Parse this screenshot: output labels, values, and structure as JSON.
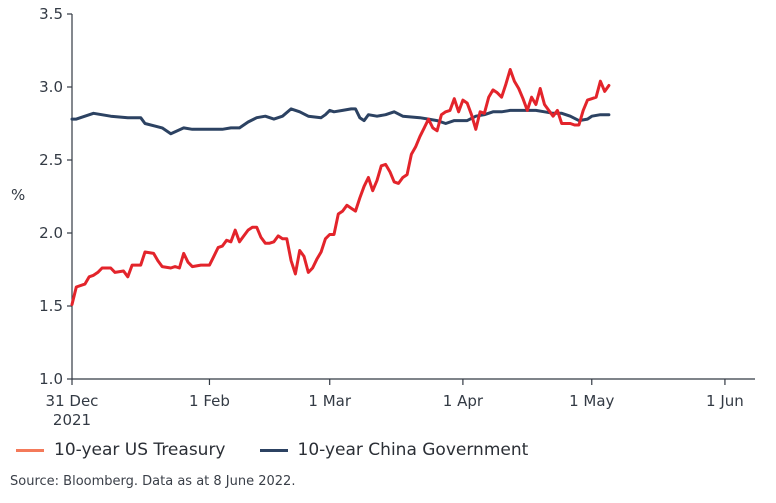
{
  "chart_data": {
    "type": "line",
    "ylabel": "%",
    "ylim": [
      1.0,
      3.5
    ],
    "yticks": [
      "1.0",
      "1.5",
      "2.0",
      "2.5",
      "3.0",
      "3.5"
    ],
    "xticks": [
      {
        "date": "2021-12-31",
        "label": "31 Dec\n2021"
      },
      {
        "date": "2022-02-01",
        "label": "1 Feb"
      },
      {
        "date": "2022-03-01",
        "label": "1 Mar"
      },
      {
        "date": "2022-04-01",
        "label": "1 Apr"
      },
      {
        "date": "2022-05-01",
        "label": "1 May"
      },
      {
        "date": "2022-06-01",
        "label": "1 Jun"
      }
    ],
    "xlim": [
      "2021-12-31",
      "2022-06-08"
    ],
    "grid": false,
    "legend_position": "bottom-left",
    "series": [
      {
        "name": "10-year US Treasury",
        "legend_color": "#f47a5a",
        "line_color": "#e3242b",
        "points": [
          [
            "2021-12-31",
            1.51
          ],
          [
            "2022-01-01",
            1.63
          ],
          [
            "2022-01-03",
            1.65
          ],
          [
            "2022-01-04",
            1.7
          ],
          [
            "2022-01-05",
            1.71
          ],
          [
            "2022-01-06",
            1.73
          ],
          [
            "2022-01-07",
            1.76
          ],
          [
            "2022-01-09",
            1.76
          ],
          [
            "2022-01-10",
            1.73
          ],
          [
            "2022-01-12",
            1.74
          ],
          [
            "2022-01-13",
            1.7
          ],
          [
            "2022-01-14",
            1.78
          ],
          [
            "2022-01-16",
            1.78
          ],
          [
            "2022-01-17",
            1.87
          ],
          [
            "2022-01-19",
            1.86
          ],
          [
            "2022-01-20",
            1.81
          ],
          [
            "2022-01-21",
            1.77
          ],
          [
            "2022-01-23",
            1.76
          ],
          [
            "2022-01-24",
            1.77
          ],
          [
            "2022-01-25",
            1.76
          ],
          [
            "2022-01-26",
            1.86
          ],
          [
            "2022-01-27",
            1.8
          ],
          [
            "2022-01-28",
            1.77
          ],
          [
            "2022-01-30",
            1.78
          ],
          [
            "2022-01-31",
            1.78
          ],
          [
            "2022-02-01",
            1.78
          ],
          [
            "2022-02-02",
            1.84
          ],
          [
            "2022-02-03",
            1.9
          ],
          [
            "2022-02-04",
            1.91
          ],
          [
            "2022-02-05",
            1.95
          ],
          [
            "2022-02-06",
            1.94
          ],
          [
            "2022-02-07",
            2.02
          ],
          [
            "2022-02-08",
            1.94
          ],
          [
            "2022-02-09",
            1.98
          ],
          [
            "2022-02-10",
            2.02
          ],
          [
            "2022-02-11",
            2.04
          ],
          [
            "2022-02-12",
            2.04
          ],
          [
            "2022-02-13",
            1.97
          ],
          [
            "2022-02-14",
            1.93
          ],
          [
            "2022-02-15",
            1.93
          ],
          [
            "2022-02-16",
            1.94
          ],
          [
            "2022-02-17",
            1.98
          ],
          [
            "2022-02-18",
            1.96
          ],
          [
            "2022-02-19",
            1.96
          ],
          [
            "2022-02-20",
            1.81
          ],
          [
            "2022-02-21",
            1.72
          ],
          [
            "2022-02-22",
            1.88
          ],
          [
            "2022-02-23",
            1.84
          ],
          [
            "2022-02-24",
            1.73
          ],
          [
            "2022-02-25",
            1.76
          ],
          [
            "2022-02-26",
            1.82
          ],
          [
            "2022-02-27",
            1.87
          ],
          [
            "2022-02-28",
            1.96
          ],
          [
            "2022-03-01",
            1.99
          ],
          [
            "2022-03-02",
            1.99
          ],
          [
            "2022-03-03",
            2.13
          ],
          [
            "2022-03-04",
            2.15
          ],
          [
            "2022-03-05",
            2.19
          ],
          [
            "2022-03-06",
            2.17
          ],
          [
            "2022-03-07",
            2.15
          ],
          [
            "2022-03-08",
            2.24
          ],
          [
            "2022-03-09",
            2.32
          ],
          [
            "2022-03-10",
            2.38
          ],
          [
            "2022-03-11",
            2.29
          ],
          [
            "2022-03-12",
            2.36
          ],
          [
            "2022-03-13",
            2.46
          ],
          [
            "2022-03-14",
            2.47
          ],
          [
            "2022-03-15",
            2.42
          ],
          [
            "2022-03-16",
            2.35
          ],
          [
            "2022-03-17",
            2.34
          ],
          [
            "2022-03-18",
            2.38
          ],
          [
            "2022-03-19",
            2.4
          ],
          [
            "2022-03-20",
            2.54
          ],
          [
            "2022-03-21",
            2.59
          ],
          [
            "2022-03-22",
            2.66
          ],
          [
            "2022-03-23",
            2.72
          ],
          [
            "2022-03-24",
            2.78
          ],
          [
            "2022-03-25",
            2.72
          ],
          [
            "2022-03-26",
            2.7
          ],
          [
            "2022-03-27",
            2.81
          ],
          [
            "2022-03-28",
            2.83
          ],
          [
            "2022-03-29",
            2.84
          ],
          [
            "2022-03-30",
            2.92
          ],
          [
            "2022-03-31",
            2.83
          ],
          [
            "2022-04-01",
            2.91
          ],
          [
            "2022-04-02",
            2.89
          ],
          [
            "2022-04-03",
            2.81
          ],
          [
            "2022-04-04",
            2.71
          ],
          [
            "2022-04-05",
            2.83
          ],
          [
            "2022-04-06",
            2.82
          ],
          [
            "2022-04-07",
            2.93
          ],
          [
            "2022-04-08",
            2.98
          ],
          [
            "2022-04-09",
            2.96
          ],
          [
            "2022-04-10",
            2.93
          ],
          [
            "2022-04-11",
            3.02
          ],
          [
            "2022-04-12",
            3.12
          ],
          [
            "2022-04-13",
            3.04
          ],
          [
            "2022-04-14",
            2.99
          ],
          [
            "2022-04-15",
            2.92
          ],
          [
            "2022-04-16",
            2.84
          ],
          [
            "2022-04-17",
            2.93
          ],
          [
            "2022-04-18",
            2.88
          ],
          [
            "2022-04-19",
            2.99
          ],
          [
            "2022-04-20",
            2.88
          ],
          [
            "2022-04-21",
            2.84
          ],
          [
            "2022-04-22",
            2.8
          ],
          [
            "2022-04-23",
            2.84
          ],
          [
            "2022-04-24",
            2.75
          ],
          [
            "2022-04-25",
            2.75
          ],
          [
            "2022-04-26",
            2.75
          ],
          [
            "2022-04-27",
            2.74
          ],
          [
            "2022-04-28",
            2.74
          ],
          [
            "2022-04-29",
            2.84
          ],
          [
            "2022-04-30",
            2.91
          ],
          [
            "2022-05-01",
            2.92
          ],
          [
            "2022-05-02",
            2.93
          ],
          [
            "2022-05-03",
            3.04
          ],
          [
            "2022-05-04",
            2.97
          ],
          [
            "2022-05-05",
            3.01
          ]
        ]
      },
      {
        "name": "10-year China Government",
        "legend_color": "#2c4262",
        "line_color": "#2c4262",
        "points": [
          [
            "2021-12-31",
            2.78
          ],
          [
            "2022-01-01",
            2.78
          ],
          [
            "2022-01-03",
            2.8
          ],
          [
            "2022-01-05",
            2.82
          ],
          [
            "2022-01-09",
            2.8
          ],
          [
            "2022-01-13",
            2.79
          ],
          [
            "2022-01-16",
            2.79
          ],
          [
            "2022-01-17",
            2.75
          ],
          [
            "2022-01-21",
            2.72
          ],
          [
            "2022-01-23",
            2.68
          ],
          [
            "2022-01-26",
            2.72
          ],
          [
            "2022-01-28",
            2.71
          ],
          [
            "2022-02-01",
            2.71
          ],
          [
            "2022-02-04",
            2.71
          ],
          [
            "2022-02-06",
            2.72
          ],
          [
            "2022-02-08",
            2.72
          ],
          [
            "2022-02-10",
            2.76
          ],
          [
            "2022-02-12",
            2.79
          ],
          [
            "2022-02-14",
            2.8
          ],
          [
            "2022-02-16",
            2.78
          ],
          [
            "2022-02-18",
            2.8
          ],
          [
            "2022-02-20",
            2.85
          ],
          [
            "2022-02-22",
            2.83
          ],
          [
            "2022-02-24",
            2.8
          ],
          [
            "2022-02-27",
            2.79
          ],
          [
            "2022-02-28",
            2.81
          ],
          [
            "2022-03-01",
            2.84
          ],
          [
            "2022-03-02",
            2.83
          ],
          [
            "2022-03-04",
            2.84
          ],
          [
            "2022-03-06",
            2.85
          ],
          [
            "2022-03-07",
            2.85
          ],
          [
            "2022-03-08",
            2.79
          ],
          [
            "2022-03-09",
            2.77
          ],
          [
            "2022-03-10",
            2.81
          ],
          [
            "2022-03-12",
            2.8
          ],
          [
            "2022-03-14",
            2.81
          ],
          [
            "2022-03-16",
            2.83
          ],
          [
            "2022-03-18",
            2.8
          ],
          [
            "2022-03-22",
            2.79
          ],
          [
            "2022-03-24",
            2.78
          ],
          [
            "2022-03-26",
            2.77
          ],
          [
            "2022-03-28",
            2.75
          ],
          [
            "2022-03-30",
            2.77
          ],
          [
            "2022-04-02",
            2.77
          ],
          [
            "2022-04-04",
            2.8
          ],
          [
            "2022-04-06",
            2.81
          ],
          [
            "2022-04-08",
            2.83
          ],
          [
            "2022-04-10",
            2.83
          ],
          [
            "2022-04-12",
            2.84
          ],
          [
            "2022-04-14",
            2.84
          ],
          [
            "2022-04-16",
            2.84
          ],
          [
            "2022-04-18",
            2.84
          ],
          [
            "2022-04-20",
            2.83
          ],
          [
            "2022-04-22",
            2.82
          ],
          [
            "2022-04-24",
            2.82
          ],
          [
            "2022-04-26",
            2.8
          ],
          [
            "2022-04-28",
            2.77
          ],
          [
            "2022-04-30",
            2.78
          ],
          [
            "2022-05-01",
            2.8
          ],
          [
            "2022-05-03",
            2.81
          ],
          [
            "2022-05-04",
            2.81
          ],
          [
            "2022-05-05",
            2.81
          ]
        ]
      }
    ]
  },
  "source_note": "Source: Bloomberg. Data as at 8 June 2022."
}
